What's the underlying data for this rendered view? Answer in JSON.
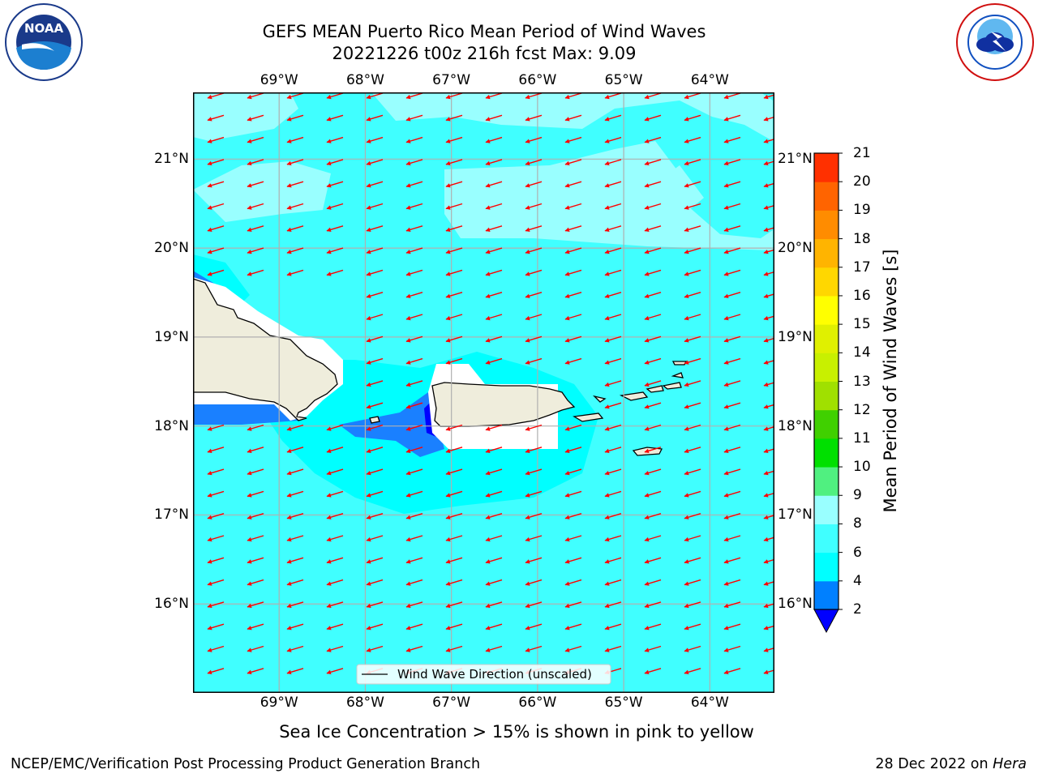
{
  "title": {
    "line1": "GEFS MEAN Puerto Rico Mean Period of Wind Waves",
    "line2": "20221226 t00z 216h fcst   Max: 9.09"
  },
  "map": {
    "lon_labels": [
      "69°W",
      "68°W",
      "67°W",
      "66°W",
      "65°W",
      "64°W"
    ],
    "lat_labels": [
      "21°N",
      "20°N",
      "19°N",
      "18°N",
      "17°N",
      "16°N"
    ],
    "lon_values": [
      -69,
      -68,
      -67,
      -66,
      -65,
      -64
    ],
    "lat_values": [
      21,
      20,
      19,
      18,
      17,
      16
    ],
    "lon_range": [
      -70.0,
      -63.25
    ],
    "lat_range": [
      15.0,
      21.75
    ],
    "legend_label": "Wind Wave Direction (unscaled)",
    "ocean_color": "#00ffff",
    "land_color": "#efeddc",
    "arrow_color": "#ff0000",
    "wind_direction": "from east-northeast (arrows point west-southwest)"
  },
  "colorbar": {
    "label": "Mean Period of Wind Waves [s]",
    "ticks": [
      "2",
      "4",
      "6",
      "8",
      "9",
      "10",
      "11",
      "12",
      "13",
      "14",
      "15",
      "16",
      "17",
      "18",
      "19",
      "20",
      "21"
    ],
    "colors": [
      "#0080ff",
      "#00ffff",
      "#40ffff",
      "#99ffff",
      "#50f080",
      "#00e000",
      "#40d000",
      "#a0e000",
      "#c8f000",
      "#e0f000",
      "#ffff00",
      "#ffd700",
      "#ffb400",
      "#ff8c00",
      "#ff6400",
      "#ff3000",
      "#ff0000"
    ],
    "extend_color": "#0000ff"
  },
  "note": "Sea Ice Concentration > 15% is shown in pink to yellow",
  "footer": {
    "left": "NCEP/EMC/Verification Post Processing Product Generation Branch",
    "date": "28 Dec 2022 on ",
    "host": "Hera"
  }
}
